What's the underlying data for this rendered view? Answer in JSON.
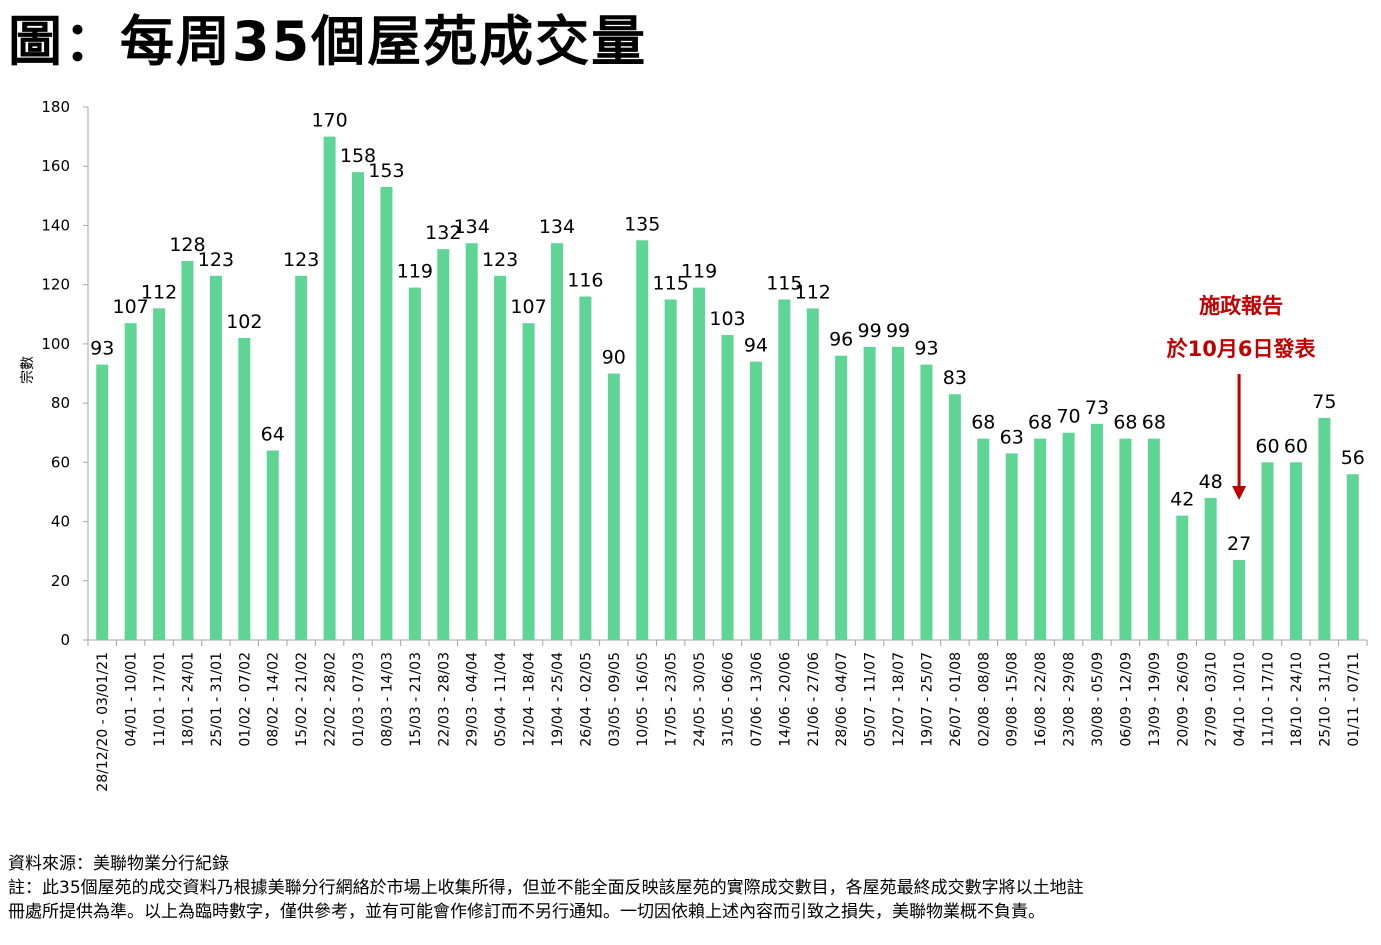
{
  "title": "圖：每周35個屋苑成交量",
  "chart_data": {
    "type": "bar",
    "ylabel": "宗數",
    "ylim": [
      0,
      180
    ],
    "yticks": [
      0,
      20,
      40,
      60,
      80,
      100,
      120,
      140,
      160,
      180
    ],
    "bar_color": "#5ed594",
    "categories": [
      "28/12/20 - 03/01/21",
      "04/01 - 10/01",
      "11/01 - 17/01",
      "18/01 - 24/01",
      "25/01 - 31/01",
      "01/02 - 07/02",
      "08/02 - 14/02",
      "15/02 - 21/02",
      "22/02 - 28/02",
      "01/03 - 07/03",
      "08/03 - 14/03",
      "15/03 - 21/03",
      "22/03 - 28/03",
      "29/03 - 04/04",
      "05/04 - 11/04",
      "12/04 - 18/04",
      "19/04 - 25/04",
      "26/04 - 02/05",
      "03/05 - 09/05",
      "10/05 - 16/05",
      "17/05 - 23/05",
      "24/05 - 30/05",
      "31/05 - 06/06",
      "07/06 - 13/06",
      "14/06 - 20/06",
      "21/06 - 27/06",
      "28/06 - 04/07",
      "05/07 - 11/07",
      "12/07 - 18/07",
      "19/07 - 25/07",
      "26/07 - 01/08",
      "02/08 - 08/08",
      "09/08 - 15/08",
      "16/08 - 22/08",
      "23/08 - 29/08",
      "30/08 - 05/09",
      "06/09 - 12/09",
      "13/09 - 19/09",
      "20/09 - 26/09",
      "27/09 - 03/10",
      "04/10 - 10/10",
      "11/10 - 17/10",
      "18/10 - 24/10",
      "25/10 - 31/10",
      "01/11 - 07/11"
    ],
    "values": [
      93,
      107,
      112,
      128,
      123,
      102,
      64,
      123,
      170,
      158,
      153,
      119,
      132,
      134,
      123,
      107,
      134,
      116,
      90,
      135,
      115,
      119,
      103,
      94,
      115,
      112,
      96,
      99,
      99,
      93,
      83,
      68,
      63,
      68,
      70,
      73,
      68,
      68,
      42,
      48,
      27,
      60,
      60,
      75,
      56
    ],
    "annotation": {
      "lines": [
        "施政報告",
        "於10月6日發表"
      ],
      "category": "04/10 - 10/10",
      "color": "#c00000"
    }
  },
  "notes": [
    "資料來源：美聯物業分行紀錄",
    "註：此35個屋苑的成交資料乃根據美聯分行網絡於市場上收集所得，但並不能全面反映該屋苑的實際成交數目，各屋苑最終成交數字將以土地註",
    "冊處所提供為準。以上為臨時數字，僅供參考，並有可能會作修訂而不另行通知。一切因依賴上述內容而引致之損失，美聯物業概不負責。"
  ]
}
